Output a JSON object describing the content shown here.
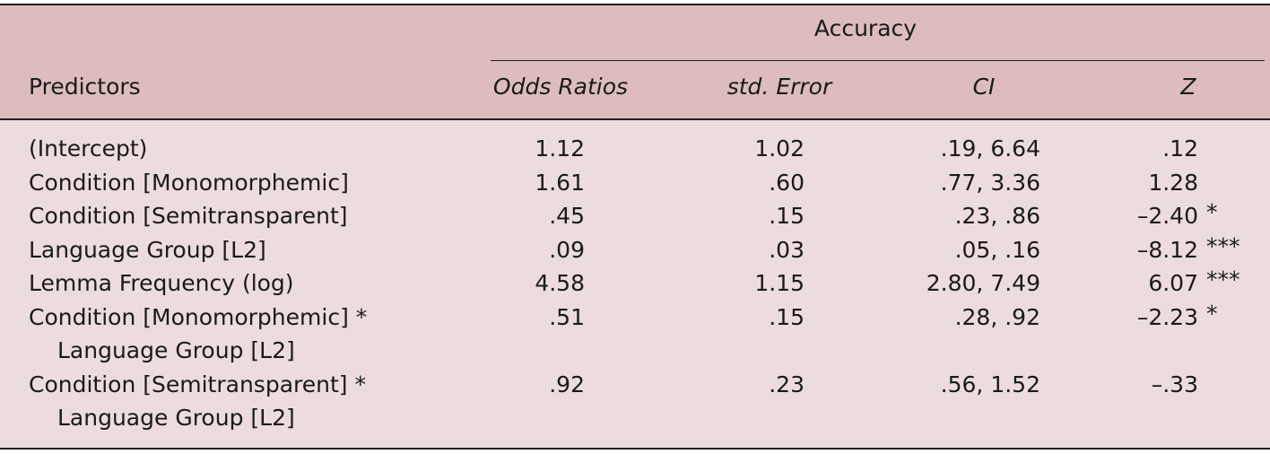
{
  "table": {
    "group_header": "Accuracy",
    "columns": [
      "Predictors",
      "Odds Ratios",
      "std. Error",
      "CI",
      "Z"
    ],
    "rows": [
      {
        "predictor": [
          "(Intercept)"
        ],
        "odds_ratio": "1.12",
        "std_error": "1.02",
        "ci": ".19, 6.64",
        "z": ".12"
      },
      {
        "predictor": [
          "Condition [Monomorphemic]"
        ],
        "odds_ratio": "1.61",
        "std_error": ".60",
        "ci": ".77, 3.36",
        "z": "1.28"
      },
      {
        "predictor": [
          "Condition [Semitransparent]"
        ],
        "odds_ratio": ".45",
        "std_error": ".15",
        "ci": ".23, .86",
        "z": "–2.40",
        "sig": "*"
      },
      {
        "predictor": [
          "Language Group [L2]"
        ],
        "odds_ratio": ".09",
        "std_error": ".03",
        "ci": ".05, .16",
        "z": "–8.12",
        "sig": "***"
      },
      {
        "predictor": [
          "Lemma Frequency (log)"
        ],
        "odds_ratio": "4.58",
        "std_error": "1.15",
        "ci": "2.80, 7.49",
        "z": "6.07",
        "sig": "***"
      },
      {
        "predictor": [
          "Condition [Monomorphemic] *",
          "Language Group [L2]"
        ],
        "odds_ratio": ".51",
        "std_error": ".15",
        "ci": ".28, .92",
        "z": "–2.23",
        "sig": "*"
      },
      {
        "predictor": [
          "Condition [Semitransparent] *",
          "Language Group [L2]"
        ],
        "odds_ratio": ".92",
        "std_error": ".23",
        "ci": ".56, 1.52",
        "z": "–.33"
      }
    ]
  }
}
